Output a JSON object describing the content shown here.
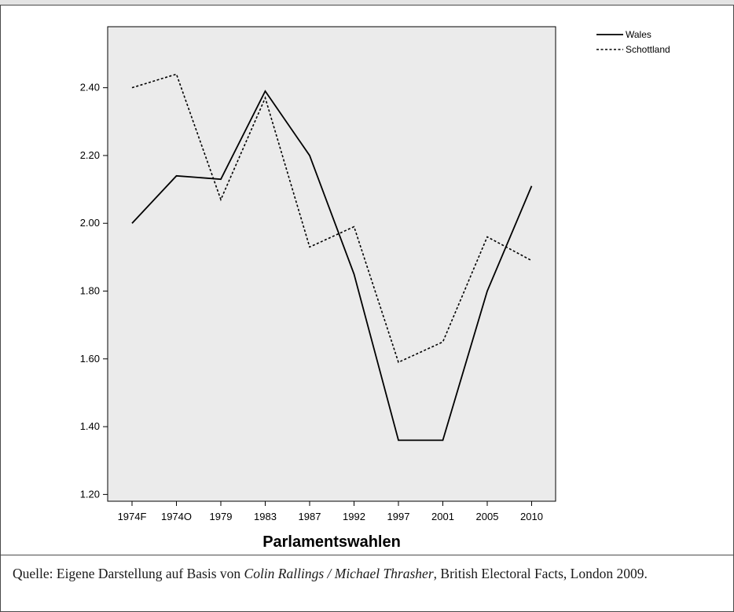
{
  "chart_data": {
    "type": "line",
    "title": "",
    "xlabel": "Parlamentswahlen",
    "ylabel": "",
    "categories": [
      "1974F",
      "1974O",
      "1979",
      "1983",
      "1987",
      "1992",
      "1997",
      "2001",
      "2005",
      "2010"
    ],
    "ylim": [
      1.18,
      2.58
    ],
    "yticks": [
      "1.20",
      "1.40",
      "1.60",
      "1.80",
      "2.00",
      "2.20",
      "2.40"
    ],
    "legend_position": "top-right",
    "plot_background": "#ebebeb",
    "series": [
      {
        "name": "Wales",
        "style": "solid",
        "color": "#000000",
        "values": [
          2.0,
          2.14,
          2.13,
          2.39,
          2.2,
          1.85,
          1.36,
          1.36,
          1.8,
          2.11
        ]
      },
      {
        "name": "Schottland",
        "style": "dashed",
        "color": "#000000",
        "values": [
          2.4,
          2.44,
          2.07,
          2.37,
          1.93,
          1.99,
          1.59,
          1.65,
          1.96,
          1.89
        ]
      }
    ]
  },
  "source": {
    "prefix": "Quelle: Eigene Darstellung auf Basis von ",
    "authors": "Colin Rallings / Michael Thrasher",
    "suffix": ", British Electoral Facts, London 2009."
  }
}
